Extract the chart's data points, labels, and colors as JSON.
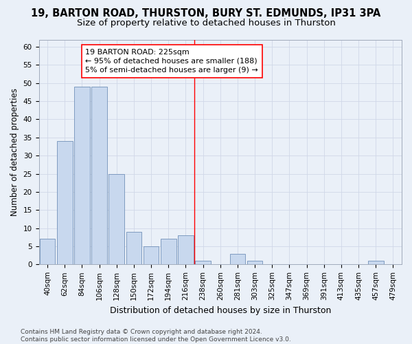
{
  "title": "19, BARTON ROAD, THURSTON, BURY ST. EDMUNDS, IP31 3PA",
  "subtitle": "Size of property relative to detached houses in Thurston",
  "xlabel": "Distribution of detached houses by size in Thurston",
  "ylabel": "Number of detached properties",
  "categories": [
    "40sqm",
    "62sqm",
    "84sqm",
    "106sqm",
    "128sqm",
    "150sqm",
    "172sqm",
    "194sqm",
    "216sqm",
    "238sqm",
    "260sqm",
    "281sqm",
    "303sqm",
    "325sqm",
    "347sqm",
    "369sqm",
    "391sqm",
    "413sqm",
    "435sqm",
    "457sqm",
    "479sqm"
  ],
  "values": [
    7,
    34,
    49,
    49,
    25,
    9,
    5,
    7,
    8,
    1,
    0,
    3,
    1,
    0,
    0,
    0,
    0,
    0,
    0,
    1,
    0
  ],
  "bar_color": "#c8d8ee",
  "bar_edge_color": "#7090b8",
  "vline_color": "red",
  "annotation_text": "19 BARTON ROAD: 225sqm\n← 95% of detached houses are smaller (188)\n5% of semi-detached houses are larger (9) →",
  "annotation_box_color": "#ffffff",
  "annotation_box_edge": "red",
  "ylim": [
    0,
    62
  ],
  "yticks": [
    0,
    5,
    10,
    15,
    20,
    25,
    30,
    35,
    40,
    45,
    50,
    55,
    60
  ],
  "grid_color": "#d0d8e8",
  "background_color": "#eaf0f8",
  "plot_bg_color": "#eaf0f8",
  "footer": "Contains HM Land Registry data © Crown copyright and database right 2024.\nContains public sector information licensed under the Open Government Licence v3.0.",
  "title_fontsize": 10.5,
  "subtitle_fontsize": 9.5,
  "axis_label_fontsize": 8.5,
  "tick_fontsize": 7.5,
  "footer_fontsize": 6.5,
  "annotation_fontsize": 8
}
